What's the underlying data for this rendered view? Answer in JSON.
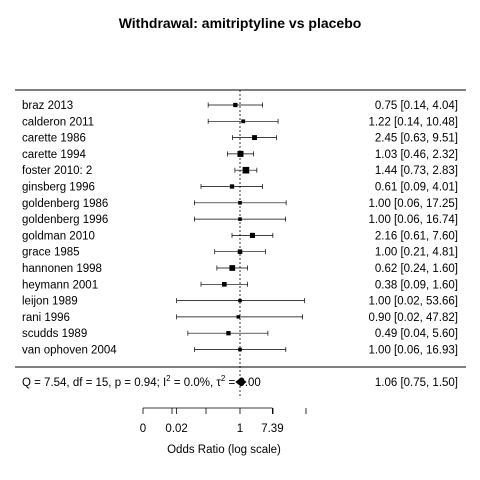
{
  "chart_data": {
    "type": "forest",
    "title": "Withdrawal: amitriptyline vs placebo",
    "xlabel": "Odds Ratio (log scale)",
    "scale": "log",
    "x_ticks": [
      {
        "value": 0,
        "label": "0"
      },
      {
        "value": 0.02,
        "label": "0.02"
      },
      {
        "value": 1,
        "label": "1"
      },
      {
        "value": 7.39,
        "label": "7.39"
      }
    ],
    "reference_line": 1,
    "studies": [
      {
        "label": "braz 2013",
        "or": 0.75,
        "lo": 0.14,
        "hi": 4.04,
        "ci_text": "0.75 [0.14,  4.04]",
        "weight": 1
      },
      {
        "label": "calderon 2011",
        "or": 1.22,
        "lo": 0.14,
        "hi": 10.48,
        "ci_text": "1.22 [0.14, 10.48]",
        "weight": 0.6
      },
      {
        "label": "carette 1986",
        "or": 2.45,
        "lo": 0.63,
        "hi": 9.51,
        "ci_text": "2.45 [0.63,  9.51]",
        "weight": 1.6
      },
      {
        "label": "carette 1994",
        "or": 1.03,
        "lo": 0.46,
        "hi": 2.32,
        "ci_text": "1.03 [0.46,  2.32]",
        "weight": 3
      },
      {
        "label": "foster 2010: 2",
        "or": 1.44,
        "lo": 0.73,
        "hi": 2.83,
        "ci_text": "1.44 [0.73,  2.83]",
        "weight": 4
      },
      {
        "label": "ginsberg 1996",
        "or": 0.61,
        "lo": 0.09,
        "hi": 4.01,
        "ci_text": "0.61 [0.09,  4.01]",
        "weight": 1
      },
      {
        "label": "goldenberg 1986",
        "or": 1.0,
        "lo": 0.06,
        "hi": 17.25,
        "ci_text": "1.00 [0.06, 17.25]",
        "weight": 0.5
      },
      {
        "label": "goldenberg 1996",
        "or": 1.0,
        "lo": 0.06,
        "hi": 16.74,
        "ci_text": "1.00 [0.06, 16.74]",
        "weight": 0.5
      },
      {
        "label": "goldman 2010",
        "or": 2.16,
        "lo": 0.61,
        "hi": 7.6,
        "ci_text": "2.16 [0.61,  7.60]",
        "weight": 1.8
      },
      {
        "label": "grace 1985",
        "or": 1.0,
        "lo": 0.21,
        "hi": 4.81,
        "ci_text": "1.00 [0.21,  4.81]",
        "weight": 1.2
      },
      {
        "label": "hannonen 1998",
        "or": 0.62,
        "lo": 0.24,
        "hi": 1.6,
        "ci_text": "0.62 [0.24,  1.60]",
        "weight": 2.6
      },
      {
        "label": "heymann 2001",
        "or": 0.38,
        "lo": 0.09,
        "hi": 1.6,
        "ci_text": "0.38 [0.09,  1.60]",
        "weight": 1.3
      },
      {
        "label": "leijon 1989",
        "or": 1.0,
        "lo": 0.02,
        "hi": 53.66,
        "ci_text": "1.00 [0.02, 53.66]",
        "weight": 0.4
      },
      {
        "label": "rani 1996",
        "or": 0.9,
        "lo": 0.02,
        "hi": 47.82,
        "ci_text": "0.90 [0.02, 47.82]",
        "weight": 0.4
      },
      {
        "label": "scudds 1989",
        "or": 0.49,
        "lo": 0.04,
        "hi": 5.6,
        "ci_text": "0.49 [0.04,  5.60]",
        "weight": 1
      },
      {
        "label": "van ophoven 2004",
        "or": 1.0,
        "lo": 0.06,
        "hi": 16.93,
        "ci_text": "1.00 [0.06, 16.93]",
        "weight": 0.5
      }
    ],
    "summary": {
      "q_text": "Q = 7.54, df = 15, p = 0.94; I",
      "i2_sup": "2",
      "i2_text": " = 0.0%, τ",
      "tau_sup": "2",
      "tau_text": " = 0.00",
      "or": 1.06,
      "lo": 0.75,
      "hi": 1.5,
      "ci_text": "1.06 [0.75,  1.50]"
    }
  }
}
